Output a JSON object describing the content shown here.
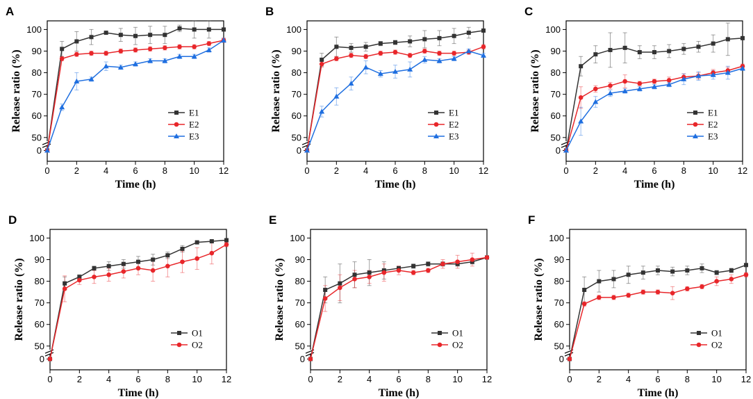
{
  "chart_data": [
    {
      "type": "line",
      "label": "A",
      "xlabel": "Time (h)",
      "ylabel": "Release ratio (%)",
      "x": [
        0,
        1,
        2,
        3,
        4,
        5,
        6,
        7,
        8,
        9,
        10,
        11,
        12
      ],
      "xlim": [
        0,
        12
      ],
      "xticks": [
        0,
        2,
        4,
        6,
        8,
        10,
        12
      ],
      "ylim": [
        -5,
        104
      ],
      "ybreak": [
        3,
        47
      ],
      "yticks": [
        0,
        50,
        60,
        70,
        80,
        90,
        100
      ],
      "legend": "lower right",
      "series": [
        {
          "name": "E1",
          "color": "#333333",
          "marker": "square",
          "values": [
            0,
            91,
            94.5,
            96.5,
            98.5,
            97.5,
            97,
            97.5,
            97.5,
            100.5,
            100,
            100,
            100
          ],
          "errors": [
            0,
            3.5,
            4.5,
            3.5,
            0.5,
            3,
            4,
            4,
            4,
            1.5,
            4,
            4,
            0
          ]
        },
        {
          "name": "E2",
          "color": "#e8262a",
          "marker": "circle",
          "values": [
            0,
            86.5,
            88.5,
            89,
            89,
            90,
            90.5,
            91,
            91.5,
            92,
            92,
            93.5,
            95
          ],
          "errors": [
            0,
            1,
            1,
            1,
            1,
            1,
            1,
            1,
            1,
            1,
            1,
            1,
            1
          ]
        },
        {
          "name": "E3",
          "color": "#1f6fe0",
          "marker": "triangle",
          "values": [
            0,
            64,
            76,
            77,
            83,
            82.5,
            84,
            85.5,
            85.5,
            87.5,
            87.5,
            90.5,
            95
          ],
          "errors": [
            0,
            1.5,
            4,
            1,
            2,
            1,
            1,
            1,
            1,
            1,
            1,
            1,
            1
          ]
        }
      ]
    },
    {
      "type": "line",
      "label": "B",
      "xlabel": "Time (h)",
      "ylabel": "Release ratio (%)",
      "x": [
        0,
        1,
        2,
        3,
        4,
        5,
        6,
        7,
        8,
        9,
        10,
        11,
        12
      ],
      "xlim": [
        0,
        12
      ],
      "xticks": [
        0,
        2,
        4,
        6,
        8,
        10,
        12
      ],
      "ylim": [
        -5,
        104
      ],
      "ybreak": [
        3,
        47
      ],
      "yticks": [
        0,
        50,
        60,
        70,
        80,
        90,
        100
      ],
      "legend": "lower right",
      "series": [
        {
          "name": "E1",
          "color": "#333333",
          "marker": "square",
          "values": [
            0,
            86,
            92,
            91.5,
            92,
            93.5,
            94,
            94.5,
            95.5,
            96,
            97,
            98.5,
            99.5
          ],
          "errors": [
            0,
            3,
            4.5,
            2,
            2,
            1,
            1,
            2.5,
            4,
            3.5,
            3.5,
            2.5,
            0
          ]
        },
        {
          "name": "E2",
          "color": "#e8262a",
          "marker": "circle",
          "values": [
            0,
            84,
            86.5,
            88,
            87.5,
            89,
            89.5,
            88,
            90,
            89,
            89,
            89.5,
            92
          ],
          "errors": [
            0,
            1.5,
            1,
            1,
            1,
            1,
            1,
            1,
            1,
            1,
            1,
            1,
            1
          ]
        },
        {
          "name": "E3",
          "color": "#1f6fe0",
          "marker": "triangle",
          "values": [
            0,
            62,
            69,
            75,
            82.5,
            79.5,
            80.5,
            81.5,
            86,
            85.5,
            86.5,
            90,
            88
          ],
          "errors": [
            0,
            2.5,
            4,
            3,
            3,
            1.5,
            3,
            3.5,
            1.5,
            1,
            1,
            1,
            1
          ]
        }
      ]
    },
    {
      "type": "line",
      "label": "C",
      "xlabel": "Time (h)",
      "ylabel": "Release ratio (%)",
      "x": [
        0,
        1,
        2,
        3,
        4,
        5,
        6,
        7,
        8,
        9,
        10,
        11,
        12
      ],
      "xlim": [
        0,
        12
      ],
      "xticks": [
        0,
        2,
        4,
        6,
        8,
        10,
        12
      ],
      "ylim": [
        -5,
        104
      ],
      "ybreak": [
        3,
        47
      ],
      "yticks": [
        0,
        50,
        60,
        70,
        80,
        90,
        100
      ],
      "legend": "lower right",
      "series": [
        {
          "name": "E1",
          "color": "#333333",
          "marker": "square",
          "values": [
            0,
            83,
            88.5,
            90.5,
            91.5,
            89.5,
            89.5,
            90,
            91,
            92,
            93.5,
            95.5,
            96
          ],
          "errors": [
            0,
            4.5,
            4,
            8,
            7,
            3,
            3,
            3,
            2.5,
            2.5,
            4,
            7.5,
            0
          ]
        },
        {
          "name": "E2",
          "color": "#e8262a",
          "marker": "circle",
          "values": [
            0,
            68.5,
            72.5,
            74,
            76,
            75,
            76,
            76.5,
            78,
            78.5,
            80,
            81,
            83
          ],
          "errors": [
            0,
            5,
            1.5,
            1.5,
            3,
            1,
            1,
            1.5,
            1.5,
            1.5,
            1.5,
            1.5,
            1
          ]
        },
        {
          "name": "E3",
          "color": "#1f6fe0",
          "marker": "triangle",
          "values": [
            0,
            57.5,
            66.5,
            70.5,
            71.5,
            72.5,
            73.5,
            74.5,
            77,
            78.5,
            79,
            80,
            82
          ],
          "errors": [
            0,
            6.5,
            2.5,
            1.5,
            1,
            1,
            1,
            1,
            2.5,
            2,
            2,
            3,
            1
          ]
        }
      ]
    },
    {
      "type": "line",
      "label": "D",
      "xlabel": "Time (h)",
      "ylabel": "Release ratio (%)",
      "x": [
        0,
        1,
        2,
        3,
        4,
        5,
        6,
        7,
        8,
        9,
        10,
        11,
        12
      ],
      "xlim": [
        0,
        12
      ],
      "xticks": [
        0,
        2,
        4,
        6,
        8,
        10,
        12
      ],
      "ylim": [
        -5,
        104
      ],
      "ybreak": [
        3,
        47
      ],
      "yticks": [
        0,
        50,
        60,
        70,
        80,
        90,
        100
      ],
      "legend": "lower right",
      "series": [
        {
          "name": "O1",
          "color": "#333333",
          "marker": "square",
          "values": [
            0,
            79,
            82,
            86,
            87,
            88,
            89,
            90,
            92,
            95,
            98,
            98.5,
            99
          ],
          "errors": [
            0,
            3,
            1,
            1,
            2,
            2,
            2.5,
            2.5,
            1.5,
            1.5,
            0.5,
            0.5,
            0
          ]
        },
        {
          "name": "O2",
          "color": "#e8262a",
          "marker": "circle",
          "values": [
            0,
            76.5,
            80.5,
            82,
            83,
            84.5,
            86,
            85,
            87,
            89,
            90.5,
            93,
            97
          ],
          "errors": [
            0,
            6,
            2,
            3,
            3,
            3,
            3,
            5,
            5,
            5,
            5,
            5,
            1
          ]
        }
      ]
    },
    {
      "type": "line",
      "label": "E",
      "xlabel": "Time (h)",
      "ylabel": "Release ratio (%)",
      "x": [
        0,
        1,
        2,
        3,
        4,
        5,
        6,
        7,
        8,
        9,
        10,
        11,
        12
      ],
      "xlim": [
        0,
        12
      ],
      "xticks": [
        0,
        2,
        4,
        6,
        8,
        10,
        12
      ],
      "ylim": [
        -5,
        104
      ],
      "ybreak": [
        3,
        47
      ],
      "yticks": [
        0,
        50,
        60,
        70,
        80,
        90,
        100
      ],
      "legend": "lower right",
      "series": [
        {
          "name": "O1",
          "color": "#333333",
          "marker": "square",
          "values": [
            0,
            76,
            79,
            83,
            84,
            85,
            86,
            87,
            88,
            88,
            88,
            89,
            91
          ],
          "errors": [
            0,
            6,
            9,
            6,
            6,
            4,
            1,
            1,
            1,
            1,
            1,
            1,
            0
          ]
        },
        {
          "name": "O2",
          "color": "#e8262a",
          "marker": "circle",
          "values": [
            0,
            72,
            77,
            81,
            82,
            84,
            85,
            84,
            85,
            88,
            89,
            90,
            91
          ],
          "errors": [
            0,
            6,
            6,
            4,
            3,
            4,
            2,
            1,
            1,
            2,
            3,
            3,
            0
          ]
        }
      ]
    },
    {
      "type": "line",
      "label": "F",
      "xlabel": "Time (h)",
      "ylabel": "Release ratio (%)",
      "x": [
        0,
        1,
        2,
        3,
        4,
        5,
        6,
        7,
        8,
        9,
        10,
        11,
        12
      ],
      "xlim": [
        0,
        12
      ],
      "xticks": [
        0,
        2,
        4,
        6,
        8,
        10,
        12
      ],
      "ylim": [
        -5,
        104
      ],
      "ybreak": [
        3,
        47
      ],
      "yticks": [
        0,
        50,
        60,
        70,
        80,
        90,
        100
      ],
      "legend": "lower right",
      "series": [
        {
          "name": "O1",
          "color": "#333333",
          "marker": "square",
          "values": [
            0,
            76,
            80,
            81,
            83,
            84,
            85,
            84.5,
            85,
            86,
            84,
            85,
            87.5
          ],
          "errors": [
            0,
            6,
            5,
            4,
            4,
            3,
            2,
            2,
            2,
            2,
            1,
            1,
            0
          ]
        },
        {
          "name": "O2",
          "color": "#e8262a",
          "marker": "circle",
          "values": [
            0,
            69.5,
            72.5,
            72.5,
            73.5,
            75,
            75,
            74.5,
            76.5,
            77.5,
            80,
            81,
            83
          ],
          "errors": [
            0,
            1,
            1,
            1,
            1,
            1,
            1,
            3,
            1,
            1,
            2,
            2,
            1
          ]
        }
      ]
    }
  ]
}
